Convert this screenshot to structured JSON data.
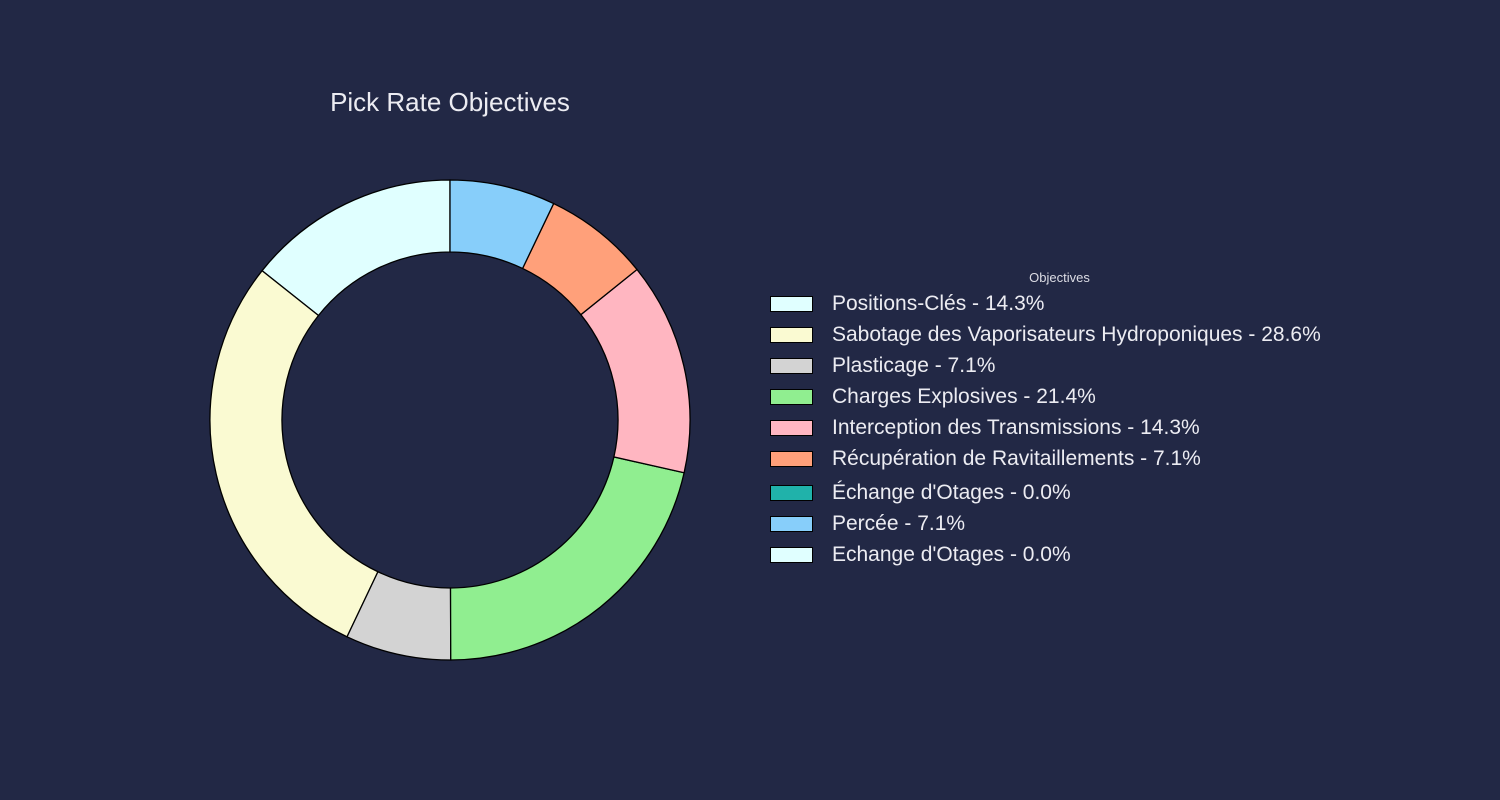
{
  "chart_data": {
    "type": "pie",
    "donut": true,
    "title": "Pick Rate Objectives",
    "legend_title": "Objectives",
    "legend_position": "right",
    "background": "#222845",
    "slices": [
      {
        "label": "Positions-Clés - 14.3%",
        "value": 14.3,
        "color": "#e0ffff"
      },
      {
        "label": "Sabotage des Vaporisateurs Hydroponiques - 28.6%",
        "value": 28.6,
        "color": "#fafad2"
      },
      {
        "label": "Plasticage - 7.1%",
        "value": 7.1,
        "color": "#d3d3d3"
      },
      {
        "label": "Charges Explosives - 21.4%",
        "value": 21.4,
        "color": "#90ee90"
      },
      {
        "label": "Interception des Transmissions - 14.3%",
        "value": 14.3,
        "color": "#ffb6c1"
      },
      {
        "label": "Récupération de Ravitaillements - 7.1%",
        "value": 7.1,
        "color": "#ffa07a"
      },
      {
        "label": "Échange d'Otages - 0.0%",
        "value": 0.0,
        "color": "#20b2aa"
      },
      {
        "label": "Percée - 7.1%",
        "value": 7.1,
        "color": "#87cefa"
      },
      {
        "label": "Echange d'Otages - 0.0%",
        "value": 0.0,
        "color": "#e0ffff"
      }
    ]
  }
}
